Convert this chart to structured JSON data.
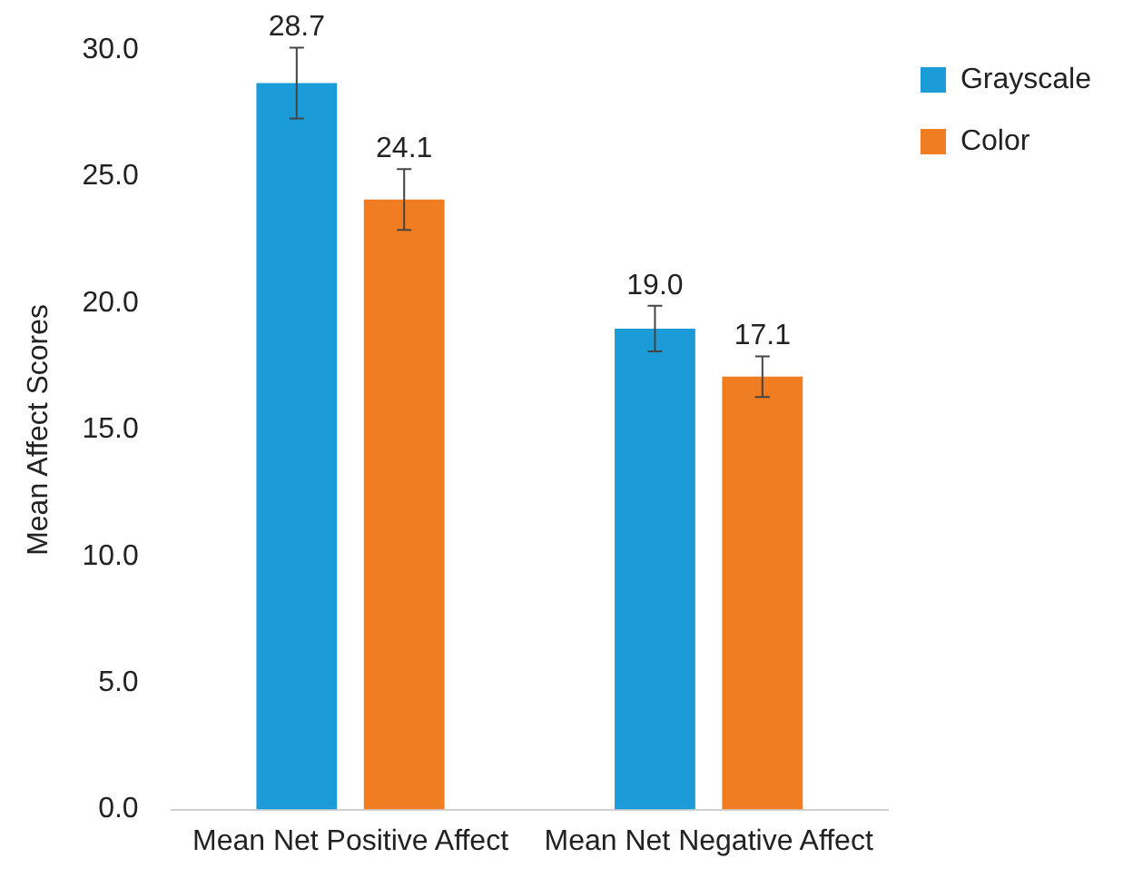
{
  "chart_data": {
    "type": "bar",
    "ylabel": "Mean Affect Scores",
    "categories": [
      "Mean Net Positive Affect",
      "Mean Net Negative Affect"
    ],
    "series": [
      {
        "name": "Grayscale",
        "color": "#1b9bd7",
        "values": [
          28.7,
          19.0
        ],
        "value_labels": [
          "28.7",
          "19.0"
        ],
        "errors": [
          1.4,
          0.9
        ]
      },
      {
        "name": "Color",
        "color": "#f07d22",
        "values": [
          24.1,
          17.1
        ],
        "value_labels": [
          "24.1",
          "17.1"
        ],
        "errors": [
          1.2,
          0.8
        ]
      }
    ],
    "ylim": [
      0,
      30
    ],
    "yticks": [
      {
        "value": 0,
        "label": "0.0"
      },
      {
        "value": 5,
        "label": "5.0"
      },
      {
        "value": 10,
        "label": "10.0"
      },
      {
        "value": 15,
        "label": "15.0"
      },
      {
        "value": 20,
        "label": "20.0"
      },
      {
        "value": 25,
        "label": "25.0"
      },
      {
        "value": 30,
        "label": "30.0"
      }
    ],
    "grid": false,
    "legend": "right"
  }
}
